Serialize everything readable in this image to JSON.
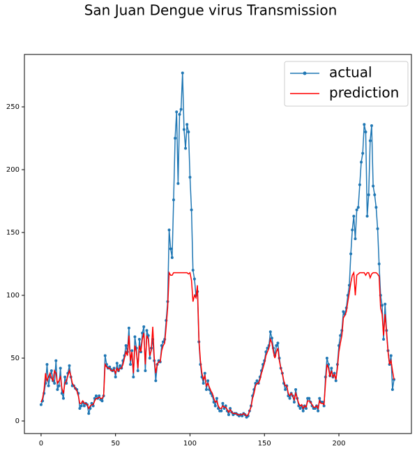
{
  "chart_data": {
    "type": "line",
    "title": "San Juan Dengue virus Transmission",
    "x": [
      0,
      1,
      2,
      3,
      4,
      5,
      6,
      7,
      8,
      9,
      10,
      11,
      12,
      13,
      14,
      15,
      16,
      17,
      18,
      19,
      20,
      21,
      22,
      23,
      24,
      25,
      26,
      27,
      28,
      29,
      30,
      31,
      32,
      33,
      34,
      35,
      36,
      37,
      38,
      39,
      40,
      41,
      42,
      43,
      44,
      45,
      46,
      47,
      48,
      49,
      50,
      51,
      52,
      53,
      54,
      55,
      56,
      57,
      58,
      59,
      60,
      61,
      62,
      63,
      64,
      65,
      66,
      67,
      68,
      69,
      70,
      71,
      72,
      73,
      74,
      75,
      76,
      77,
      78,
      79,
      80,
      81,
      82,
      83,
      84,
      85,
      86,
      87,
      88,
      89,
      90,
      91,
      92,
      93,
      94,
      95,
      96,
      97,
      98,
      99,
      100,
      101,
      102,
      103,
      104,
      105,
      106,
      107,
      108,
      109,
      110,
      111,
      112,
      113,
      114,
      115,
      116,
      117,
      118,
      119,
      120,
      121,
      122,
      123,
      124,
      125,
      126,
      127,
      128,
      129,
      130,
      131,
      132,
      133,
      134,
      135,
      136,
      137,
      138,
      139,
      140,
      141,
      142,
      143,
      144,
      145,
      146,
      147,
      148,
      149,
      150,
      151,
      152,
      153,
      154,
      155,
      156,
      157,
      158,
      159,
      160,
      161,
      162,
      163,
      164,
      165,
      166,
      167,
      168,
      169,
      170,
      171,
      172,
      173,
      174,
      175,
      176,
      177,
      178,
      179,
      180,
      181,
      182,
      183,
      184,
      185,
      186,
      187,
      188,
      189,
      190,
      191,
      192,
      193,
      194,
      195,
      196,
      197,
      198,
      199,
      200,
      201,
      202,
      203,
      204,
      205,
      206,
      207,
      208,
      209,
      210,
      211,
      212,
      213,
      214,
      215,
      216,
      217,
      218,
      219,
      220,
      221,
      222,
      223,
      224,
      225,
      226,
      227,
      228,
      229,
      230,
      231,
      232,
      233,
      234,
      235,
      236,
      237
    ],
    "series": [
      {
        "name": "actual",
        "color": "#1f77b4",
        "marker": true,
        "values": [
          13,
          16,
          22,
          30,
          45,
          28,
          35,
          40,
          32,
          30,
          48,
          25,
          28,
          42,
          22,
          18,
          35,
          30,
          38,
          44,
          35,
          28,
          28,
          26,
          25,
          22,
          10,
          12,
          15,
          12,
          14,
          13,
          6,
          10,
          14,
          12,
          18,
          20,
          18,
          20,
          17,
          16,
          20,
          52,
          45,
          42,
          43,
          41,
          40,
          42,
          35,
          46,
          40,
          44,
          42,
          48,
          52,
          60,
          55,
          74,
          45,
          56,
          35,
          67,
          58,
          40,
          65,
          55,
          70,
          75,
          40,
          72,
          68,
          50,
          58,
          65,
          48,
          32,
          45,
          48,
          47,
          60,
          63,
          65,
          80,
          95,
          152,
          137,
          130,
          176,
          225,
          246,
          189,
          244,
          248,
          277,
          232,
          217,
          236,
          230,
          194,
          168,
          120,
          113,
          100,
          103,
          63,
          45,
          35,
          30,
          38,
          25,
          32,
          25,
          22,
          20,
          15,
          12,
          18,
          10,
          8,
          8,
          14,
          10,
          12,
          8,
          5,
          10,
          7,
          5,
          6,
          6,
          5,
          4,
          5,
          4,
          6,
          5,
          3,
          4,
          8,
          12,
          20,
          25,
          30,
          32,
          30,
          35,
          40,
          45,
          48,
          55,
          58,
          60,
          71,
          66,
          58,
          52,
          60,
          62,
          50,
          42,
          38,
          30,
          25,
          28,
          20,
          18,
          22,
          20,
          15,
          25,
          18,
          12,
          10,
          12,
          8,
          12,
          10,
          18,
          18,
          15,
          12,
          10,
          10,
          12,
          8,
          18,
          15,
          15,
          12,
          35,
          50,
          45,
          36,
          42,
          35,
          38,
          32,
          45,
          60,
          68,
          72,
          87,
          85,
          90,
          100,
          108,
          133,
          152,
          163,
          145,
          168,
          170,
          188,
          206,
          213,
          236,
          230,
          163,
          180,
          223,
          235,
          187,
          180,
          170,
          153,
          125,
          100,
          92,
          65,
          93,
          72,
          56,
          45,
          52,
          25,
          33
        ]
      },
      {
        "name": "prediction",
        "color": "#ff0000",
        "marker": false,
        "values": [
          15,
          18,
          25,
          38,
          32,
          35,
          38,
          34,
          32,
          40,
          38,
          30,
          32,
          35,
          26,
          22,
          30,
          32,
          36,
          40,
          36,
          30,
          28,
          26,
          24,
          20,
          14,
          14,
          16,
          14,
          14,
          13,
          10,
          12,
          13,
          13,
          16,
          18,
          18,
          19,
          18,
          18,
          20,
          45,
          43,
          42,
          42,
          40,
          40,
          41,
          38,
          42,
          40,
          42,
          42,
          45,
          50,
          55,
          52,
          68,
          48,
          55,
          38,
          60,
          55,
          42,
          60,
          55,
          65,
          70,
          45,
          68,
          65,
          52,
          56,
          75,
          50,
          38,
          45,
          47,
          47,
          56,
          60,
          62,
          75,
          90,
          118,
          116,
          116,
          118,
          118,
          118,
          118,
          118,
          118,
          118,
          118,
          118,
          118,
          117,
          118,
          112,
          95,
          100,
          98,
          108,
          65,
          48,
          38,
          33,
          36,
          28,
          30,
          27,
          24,
          22,
          18,
          15,
          16,
          12,
          10,
          10,
          12,
          11,
          11,
          9,
          7,
          9,
          7,
          6,
          6,
          6,
          5,
          5,
          5,
          5,
          6,
          5,
          4,
          5,
          8,
          11,
          18,
          22,
          28,
          30,
          30,
          33,
          38,
          42,
          46,
          52,
          55,
          58,
          65,
          62,
          55,
          50,
          55,
          58,
          48,
          42,
          38,
          32,
          28,
          28,
          22,
          20,
          22,
          20,
          17,
          22,
          18,
          14,
          12,
          13,
          10,
          12,
          11,
          16,
          16,
          15,
          13,
          11,
          11,
          12,
          10,
          16,
          14,
          14,
          13,
          30,
          45,
          42,
          35,
          40,
          35,
          37,
          33,
          42,
          55,
          62,
          68,
          82,
          84,
          87,
          95,
          102,
          110,
          116,
          118,
          100,
          116,
          117,
          118,
          118,
          118,
          118,
          116,
          118,
          118,
          114,
          117,
          118,
          118,
          118,
          117,
          115,
          90,
          85,
          68,
          85,
          70,
          55,
          45,
          48,
          40,
          33
        ]
      }
    ],
    "xlim": [
      -11.2,
      248.7
    ],
    "ylim": [
      -10,
      291.7
    ],
    "xticks": [
      0,
      50,
      100,
      150,
      200
    ],
    "yticks": [
      0,
      50,
      100,
      150,
      200,
      250
    ],
    "legend": "upper right"
  }
}
